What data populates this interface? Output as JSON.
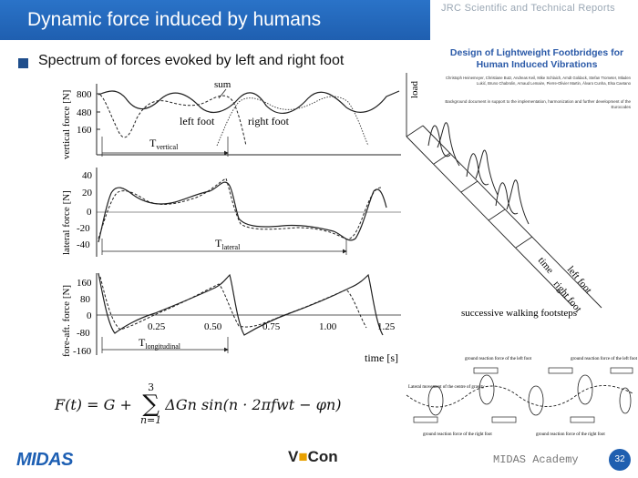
{
  "slide": {
    "title": "Dynamic force induced by humans",
    "subtitle": "Spectrum of forces evoked by left and right foot",
    "series_label": "JRC Scientific and Technical Reports"
  },
  "report": {
    "title": "Design of Lightweight Footbridges for Human Induced Vibrations",
    "authors": "Christoph Heinemeyer, Christiane Butz, Andreas Keil, Mike Schlaich, Arndt Goldack, Stefan Trometer, Mladen Lukić, Bruno Chabrolin, Arnaud Lemaire, Pierre-Olivier Martin, Álvaro Cunha, Elsa Caetano",
    "note": "Background document in support to the implementation, harmonization and further development of the Eurocodes"
  },
  "charts": {
    "vertical": {
      "ylabel": "vertical force [N]",
      "ticks": [
        "800",
        "480",
        "160"
      ],
      "labels": {
        "sum": "sum",
        "left": "left foot",
        "right": "right foot",
        "period": "T",
        "period_sub": "vertical"
      }
    },
    "lateral": {
      "ylabel": "lateral force [N]",
      "ticks": [
        "40",
        "20",
        "0",
        "-20",
        "-40"
      ],
      "labels": {
        "period": "T",
        "period_sub": "lateral"
      }
    },
    "foreaft": {
      "ylabel": "fore-aft. force [N]",
      "ticks": [
        "160",
        "80",
        "0",
        "-80",
        "-160"
      ],
      "xticks": [
        "0.25",
        "0.50",
        "0.75",
        "1.00",
        "1.25"
      ],
      "xlabel": "time [s]",
      "labels": {
        "period": "T",
        "period_sub": "longitudinal"
      }
    }
  },
  "footsteps": {
    "load": "load",
    "time": "time",
    "left": "left foot",
    "right": "right foot",
    "caption": "successive walking footsteps"
  },
  "gait": {
    "grf_left_1": "ground reaction force of the left foot",
    "grf_left_2": "ground reaction force of the left foot",
    "lateral": "Lateral movement of the centre of gravity",
    "grf_right_1": "ground reaction force of the right foot",
    "grf_right_2": "ground reaction force of the right foot"
  },
  "formula": {
    "lhs": "F(t) = G + ",
    "sum_top": "3",
    "sum_bottom": "n=1",
    "term": "ΔGn sin(n · 2πfwt − φn)"
  },
  "footer": {
    "logo": "MIDAS",
    "vcon_1": "V",
    "vcon_2": "Con",
    "academy": "MIDAS Academy",
    "page": "32"
  }
}
